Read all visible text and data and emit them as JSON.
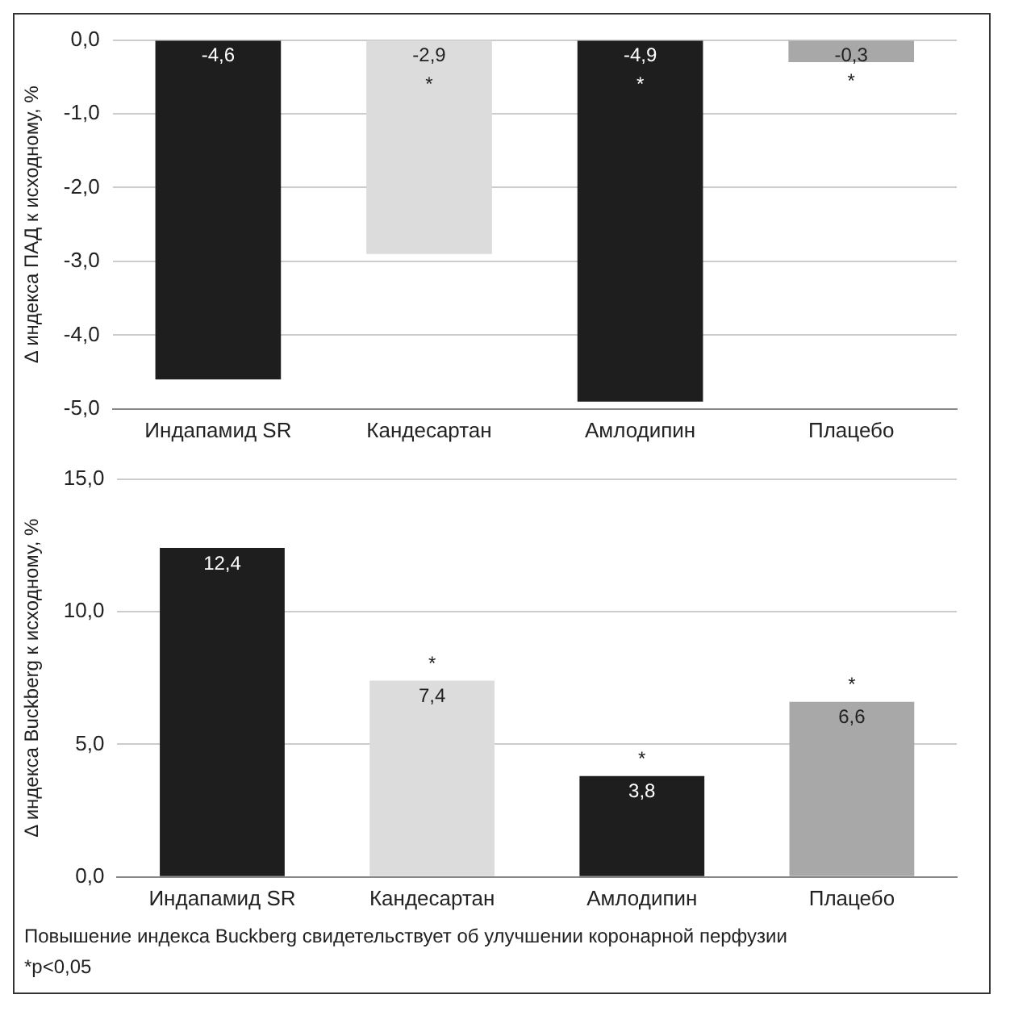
{
  "chart_data": [
    {
      "type": "bar",
      "ylabel": "Δ индекса ПАД к исходному, %",
      "categories": [
        "Индапамид SR",
        "Кандесартан",
        "Амлодипин",
        "Плацебо"
      ],
      "values": [
        -4.6,
        -2.9,
        -4.9,
        -0.3
      ],
      "colors": [
        "#1e1e1e",
        "#dcdcdc",
        "#1e1e1e",
        "#a8a8a8"
      ],
      "value_labels": [
        "-4,6",
        "-2,9",
        "-4,9",
        "-0,3"
      ],
      "ylim": [
        -5,
        0
      ],
      "yticks": [
        {
          "value": 0,
          "label": "0,0"
        },
        {
          "value": -1,
          "label": "-1,0"
        },
        {
          "value": -2,
          "label": "-2,0"
        },
        {
          "value": -3,
          "label": "-3,0"
        },
        {
          "value": -4,
          "label": "-4,0"
        },
        {
          "value": -5,
          "label": "-5,0"
        }
      ],
      "grid": "y",
      "legend": false,
      "annotations": [
        {
          "text": "*",
          "x": "Кандесартан",
          "y": 0
        },
        {
          "text": "*",
          "x": "Амлодипин",
          "y": 0
        },
        {
          "text": "*",
          "x": "Плацебо",
          "y": -0.3
        }
      ]
    },
    {
      "type": "bar",
      "ylabel": "Δ индекса Buckberg к исходному, %",
      "categories": [
        "Индапамид SR",
        "Кандесартан",
        "Амлодипин",
        "Плацебо"
      ],
      "values": [
        12.4,
        7.4,
        3.8,
        6.6
      ],
      "colors": [
        "#1e1e1e",
        "#dcdcdc",
        "#1e1e1e",
        "#a8a8a8"
      ],
      "value_labels": [
        "12,4",
        "7,4",
        "3,8",
        "6,6"
      ],
      "ylim": [
        0,
        15
      ],
      "yticks": [
        {
          "value": 0,
          "label": "0,0"
        },
        {
          "value": 5,
          "label": "5,0"
        },
        {
          "value": 10,
          "label": "10,0"
        },
        {
          "value": 15,
          "label": "15,0"
        }
      ],
      "grid": "y",
      "legend": false,
      "annotations": [
        {
          "text": "*",
          "x": "Кандесартан",
          "y": 7.4
        },
        {
          "text": "*",
          "x": "Амлодипин",
          "y": 3.8
        },
        {
          "text": "*",
          "x": "Плацебо",
          "y": 6.6
        },
        "Повышение индекса Buckberg свидетельствует об улучшении коронарной перфузии",
        "*p<0,05"
      ]
    }
  ]
}
